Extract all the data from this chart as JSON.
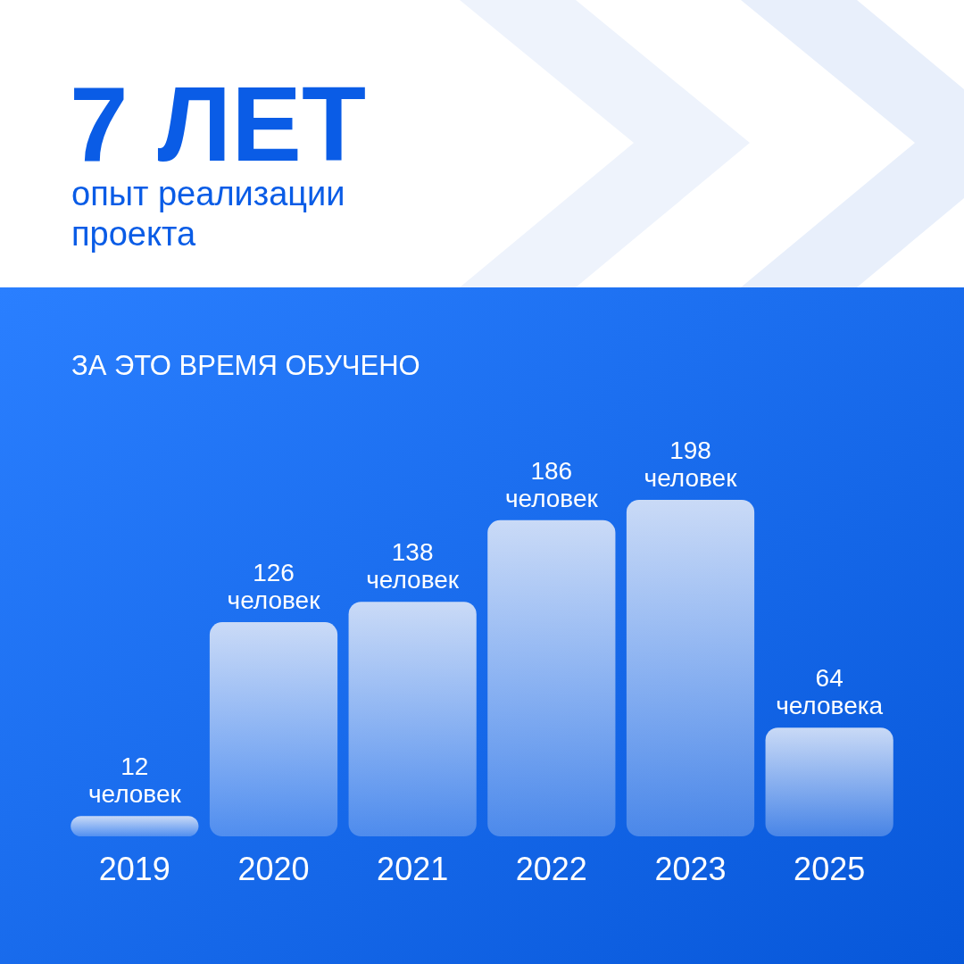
{
  "chart_data": {
    "type": "bar",
    "title": "7 ЛЕТ",
    "subtitle": "опыт реализации проекта",
    "annotations": [
      "ЗА ЭТО ВРЕМЯ ОБУЧЕНО"
    ],
    "categories": [
      "2019",
      "2020",
      "2021",
      "2022",
      "2023",
      "2025"
    ],
    "values": [
      12,
      126,
      138,
      186,
      198,
      64
    ],
    "value_labels": [
      "12 человек",
      "126 человек",
      "138 человек",
      "186 человек",
      "198 человек",
      "64 человека"
    ],
    "color": "#d3e0f7"
  }
}
